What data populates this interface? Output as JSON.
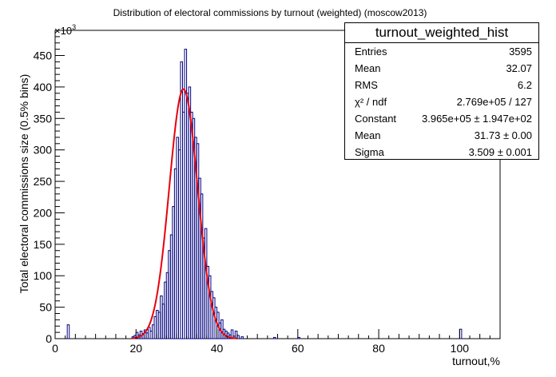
{
  "chart_data": {
    "type": "bar",
    "title": "Distribution of electoral commissions by turnout (weighted) (moscow2013)",
    "xlabel": "turnout,%",
    "ylabel": "Total electoral commissions size (0.5% bins)",
    "y_multiplier_label": "×10",
    "y_multiplier_exp": "3",
    "xlim": [
      0,
      110
    ],
    "ylim": [
      0,
      490
    ],
    "bin_width": 0.5,
    "x_ticks": [
      0,
      20,
      40,
      60,
      80,
      100
    ],
    "y_ticks": [
      0,
      50,
      100,
      150,
      200,
      250,
      300,
      350,
      400,
      450
    ],
    "bins": [
      [
        3.0,
        22
      ],
      [
        19.0,
        3
      ],
      [
        19.5,
        5
      ],
      [
        20.0,
        10
      ],
      [
        20.5,
        6
      ],
      [
        21.0,
        12
      ],
      [
        21.5,
        8
      ],
      [
        22.0,
        14
      ],
      [
        22.5,
        9
      ],
      [
        23.0,
        18
      ],
      [
        23.5,
        12
      ],
      [
        24.0,
        22
      ],
      [
        24.5,
        35
      ],
      [
        25.0,
        45
      ],
      [
        25.5,
        42
      ],
      [
        26.0,
        68
      ],
      [
        26.5,
        55
      ],
      [
        27.0,
        90
      ],
      [
        27.5,
        105
      ],
      [
        28.0,
        140
      ],
      [
        28.5,
        165
      ],
      [
        29.0,
        210
      ],
      [
        29.5,
        270
      ],
      [
        30.0,
        320
      ],
      [
        30.5,
        300
      ],
      [
        31.0,
        440
      ],
      [
        31.5,
        360
      ],
      [
        32.0,
        460
      ],
      [
        32.5,
        390
      ],
      [
        33.0,
        400
      ],
      [
        33.5,
        360
      ],
      [
        34.0,
        350
      ],
      [
        34.5,
        320
      ],
      [
        35.0,
        310
      ],
      [
        35.5,
        255
      ],
      [
        36.0,
        230
      ],
      [
        36.5,
        160
      ],
      [
        37.0,
        175
      ],
      [
        37.5,
        115
      ],
      [
        38.0,
        100
      ],
      [
        38.5,
        75
      ],
      [
        39.0,
        65
      ],
      [
        39.5,
        50
      ],
      [
        40.0,
        42
      ],
      [
        40.5,
        25
      ],
      [
        41.0,
        30
      ],
      [
        41.5,
        15
      ],
      [
        42.0,
        12
      ],
      [
        42.5,
        9
      ],
      [
        43.0,
        6
      ],
      [
        43.5,
        14
      ],
      [
        44.0,
        4
      ],
      [
        44.5,
        12
      ],
      [
        45.0,
        5
      ],
      [
        46.0,
        3
      ],
      [
        54.0,
        2
      ],
      [
        60.0,
        2
      ],
      [
        100.0,
        15
      ]
    ],
    "fit": {
      "function": "gaus",
      "color": "#e8000b",
      "constant": 396.5,
      "mean": 31.73,
      "sigma": 3.509
    },
    "histogram_color": "#00007f"
  },
  "stats": {
    "title": "turnout_weighted_hist",
    "rows": [
      {
        "label": "Entries",
        "value": "3595"
      },
      {
        "label": "Mean",
        "value": "32.07"
      },
      {
        "label": "RMS",
        "value": "6.2"
      },
      {
        "label": "χ² / ndf",
        "value": "2.769e+05 / 127"
      },
      {
        "label": "Constant",
        "value": "3.965e+05  ± 1.947e+02"
      },
      {
        "label": "Mean",
        "value": "31.73 ± 0.00"
      },
      {
        "label": "Sigma",
        "value": "3.509 ± 0.001"
      }
    ]
  }
}
